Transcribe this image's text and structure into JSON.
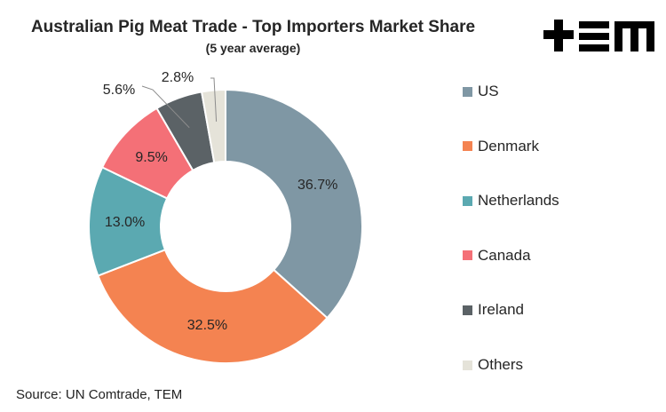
{
  "header": {
    "title": "Australian Pig Meat Trade - Top Importers Market Share",
    "subtitle": "(5 year average)"
  },
  "footer": {
    "source": "Source: UN Comtrade, TEM"
  },
  "logo": {
    "icon": "tem-logo",
    "text": "+EM"
  },
  "chart_data": {
    "type": "pie",
    "style": "donut",
    "categories": [
      "US",
      "Denmark",
      "Netherlands",
      "Canada",
      "Ireland",
      "Others"
    ],
    "values": [
      36.7,
      32.5,
      13.0,
      9.5,
      5.6,
      2.8
    ],
    "labels": [
      "36.7%",
      "32.5%",
      "13.0%",
      "9.5%",
      "5.6%",
      "2.8%"
    ],
    "colors": [
      "#7f97a4",
      "#f48351",
      "#5ba9b1",
      "#f47077",
      "#5b6266",
      "#e5e3d9"
    ],
    "title": "Australian Pig Meat Trade - Top Importers Market Share",
    "subtitle": "(5 year average)",
    "legend_position": "right"
  }
}
